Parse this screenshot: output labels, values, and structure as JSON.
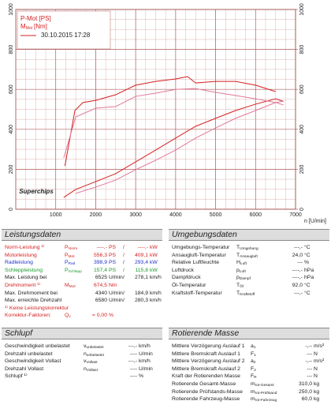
{
  "chart_data": {
    "type": "line",
    "legend": {
      "date": "30.10.2015 17:28"
    },
    "logo": "Superchips",
    "xlabel": "n [U/min]",
    "xlim": [
      0,
      7000
    ],
    "xticks": [
      1000,
      2000,
      3000,
      4000,
      5000,
      6000,
      7000
    ],
    "ylim": [
      0,
      1000
    ],
    "yticks": [
      0,
      200,
      400,
      600,
      800,
      1000
    ],
    "y2lim": [
      0,
      1000
    ],
    "y2ticks": [
      0,
      200,
      400,
      600,
      800,
      1000
    ],
    "grid": true,
    "series": [
      {
        "name": "P-Mot [PS]",
        "color": "#d42020",
        "x": [
          1200,
          1500,
          2000,
          2500,
          3000,
          3500,
          4000,
          4500,
          5000,
          5500,
          6000,
          6500,
          6700
        ],
        "values": [
          59,
          99,
          138,
          178,
          237,
          296,
          356,
          415,
          455,
          494,
          526,
          553,
          540
        ]
      },
      {
        "name": "M",
        "name_sub": "Mot",
        "name_suffix": "[Nm]",
        "axis": "y2",
        "color": "#d42020",
        "x": [
          1230,
          1480,
          1680,
          2000,
          2500,
          3000,
          3500,
          4000,
          4300,
          4500,
          5000,
          5500,
          6000,
          6500
        ],
        "values": [
          217,
          494,
          534,
          545,
          573,
          621,
          640,
          652,
          664,
          632,
          640,
          640,
          621,
          589
        ]
      },
      {
        "color": "#e07a9a",
        "x": [
          1500,
          2000,
          2500,
          3000,
          3500,
          4000,
          4500,
          5000,
          5500,
          6000,
          6500,
          6700
        ],
        "values": [
          79,
          111,
          146,
          198,
          245,
          296,
          356,
          407,
          455,
          494,
          534,
          541
        ]
      },
      {
        "axis": "y2",
        "color": "#e07a9a",
        "x": [
          1200,
          1500,
          2000,
          2500,
          3000,
          3500,
          4000,
          4500,
          5000,
          5500,
          6000,
          6500,
          6700
        ],
        "values": [
          257,
          462,
          506,
          514,
          565,
          581,
          600,
          604,
          585,
          569,
          553,
          534,
          522
        ]
      }
    ]
  },
  "sections": [
    {
      "title": "Leistungsdaten",
      "rows": [
        {
          "label": "Norm-Leistung ¹⁾",
          "color": "#d42020",
          "symbol": {
            "base": "P",
            "sub": "Norm"
          },
          "cells": [
            "----,-",
            "PS",
            "/",
            "----,-",
            "kW"
          ]
        },
        {
          "label": "Motorleistung",
          "color": "#d42020",
          "symbol": {
            "base": "P",
            "sub": "Mot"
          },
          "cells": [
            "556,3",
            "PS",
            "/",
            "409,1",
            "kW"
          ]
        },
        {
          "label": "Radleistung",
          "color": "#2030c8",
          "symbol": {
            "base": "P",
            "sub": "Rad"
          },
          "cells": [
            "398,9",
            "PS",
            "/",
            "293,4",
            "kW"
          ]
        },
        {
          "label": "Schleppleistung",
          "color": "#1a9a2a",
          "symbol": {
            "base": "P",
            "sub": "Schlepp"
          },
          "cells": [
            "157,4",
            "PS",
            "/",
            "115,8",
            "kW"
          ]
        },
        {
          "label": "Max. Leistung bei",
          "cells": [
            "6525",
            "U/min",
            "/",
            "278,1",
            "km/h"
          ]
        },
        {
          "label": "Drehmoment ¹⁾",
          "color": "#d42020",
          "symbol": {
            "base": "M",
            "sub": "Mot"
          },
          "cells": [
            "674,5",
            "Nm"
          ]
        },
        {
          "label": "Max. Drehmoment bei",
          "cells": [
            "4340",
            "U/min",
            "/",
            "184,9",
            "km/h"
          ]
        },
        {
          "label": "Max. erreichte Drehzahl",
          "cells": [
            "6580",
            "U/min",
            "/",
            "280,3",
            "km/h"
          ]
        },
        {
          "label": "¹⁾ Keine Leistungskorrektur",
          "color": "#d42020"
        },
        {
          "label": "Korrektur-Faktoren:",
          "color": "#d42020",
          "symbol": {
            "base": "Q",
            "sub": "v"
          },
          "cells": [
            "= 0,00",
            "%"
          ]
        }
      ]
    },
    {
      "title": "Umgebungsdaten",
      "rows": [
        {
          "label": "Umgebungs-Temperatur",
          "symbol": {
            "base": "T",
            "sub": "Umgebung"
          },
          "cells": [
            "---,-",
            "°C"
          ]
        },
        {
          "label": "Ansaugluft-Temperatur",
          "symbol": {
            "base": "T",
            "sub": "Ansaugluft"
          },
          "cells": [
            "24,0",
            "°C"
          ]
        },
        {
          "label": "Relative Luftfeuchte",
          "symbol": {
            "base": "H",
            "sub": "Luft"
          },
          "cells": [
            "---",
            "%"
          ]
        },
        {
          "label": "Luftdruck",
          "symbol": {
            "base": "p",
            "sub": "Luft"
          },
          "cells": [
            "----,-",
            "hPa"
          ]
        },
        {
          "label": "Dampfdruck",
          "symbol": {
            "base": "p",
            "sub": "Dampf"
          },
          "cells": [
            "----,-",
            "hPa"
          ]
        },
        {
          "label": "Öl-Temperatur",
          "symbol": {
            "base": "T",
            "sub": "Öl"
          },
          "cells": [
            "92,0",
            "°C"
          ]
        },
        {
          "label": "Kraftstoff-Temperatur",
          "symbol": {
            "base": "T",
            "sub": "Kraftstoff"
          },
          "cells": [
            "---,-",
            "°C"
          ]
        }
      ]
    },
    {
      "title": "Schlupf",
      "rows": [
        {
          "label": "Geschwindigkeit unbelastet",
          "symbol": {
            "base": "v",
            "sub": "unbelastet"
          },
          "cells": [
            "---,-",
            "km/h"
          ]
        },
        {
          "label": "Drehzahl unbelastet",
          "symbol": {
            "base": "n",
            "sub": "unbelastet"
          },
          "cells": [
            "----",
            "U/min"
          ]
        },
        {
          "label": "Geschwindigkeit Vollast",
          "symbol": {
            "base": "v",
            "sub": "Vollast"
          },
          "cells": [
            "---,-",
            "km/h"
          ]
        },
        {
          "label": "Drehzahl Vollast",
          "symbol": {
            "base": "n",
            "sub": "Vollast"
          },
          "cells": [
            "----",
            "U/min"
          ]
        },
        {
          "label": "Schlupf ¹⁾",
          "cells": [
            "----",
            "%"
          ]
        }
      ]
    },
    {
      "title": "Rotierende Masse",
      "rows": [
        {
          "label": "Mittlere Verzögerung Auslauf 1",
          "symbol": {
            "base": "a",
            "sub": "1"
          },
          "cells": [
            "-,--",
            "m/s²"
          ]
        },
        {
          "label": "Mittlere Bremskraft Auslauf 1",
          "symbol": {
            "base": "F",
            "sub": "1"
          },
          "cells": [
            "---",
            "N"
          ]
        },
        {
          "label": "Mittlere Verzögerung Auslauf 2",
          "symbol": {
            "base": "a",
            "sub": "2"
          },
          "cells": [
            "-,--",
            "m/s²"
          ]
        },
        {
          "label": "Mittlere Bremskraft Auslauf 2",
          "symbol": {
            "base": "F",
            "sub": "2"
          },
          "cells": [
            "---",
            "N"
          ]
        },
        {
          "label": "Kraft der Rotierenden Masse",
          "symbol": {
            "base": "F",
            "sub": "R"
          },
          "cells": [
            "---",
            "N"
          ]
        },
        {
          "label": "Rotierende Gesamt-Masse",
          "symbol": {
            "base": "m",
            "sub": "rot-Gesamt"
          },
          "cells": [
            "310,0",
            "kg"
          ]
        },
        {
          "label": "Rotierende Prüfstands-Masse",
          "symbol": {
            "base": "m",
            "sub": "rot-Prüfstand"
          },
          "cells": [
            "250,0",
            "kg"
          ]
        },
        {
          "label": "Rotierende Fahrzeug-Masse",
          "symbol": {
            "base": "m",
            "sub": "rot-Fahrzeug"
          },
          "cells": [
            "60,0",
            "kg"
          ]
        }
      ]
    }
  ]
}
